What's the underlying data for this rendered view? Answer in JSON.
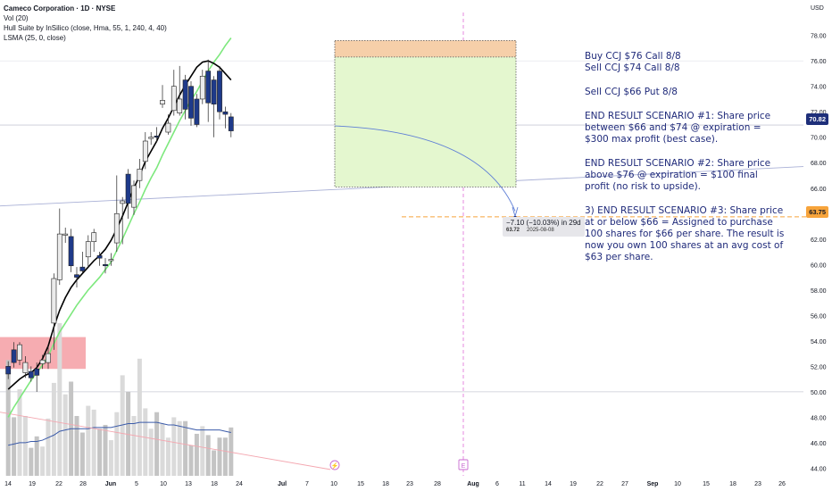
{
  "legend": {
    "title": "Cameco Corporation · 1D · NYSE",
    "volume": "Vol (20)",
    "hull": "Hull Suite by InSilico (close, Hma, 55, 1, 240, 4, 40)",
    "lsma": "LSMA (25, 0, close)"
  },
  "axis": {
    "unit": "USD",
    "y_ticks": [
      "78.00",
      "76.00",
      "74.00",
      "72.00",
      "70.00",
      "68.00",
      "66.00",
      "64.00",
      "62.00",
      "60.00",
      "58.00",
      "56.00",
      "54.00",
      "52.00",
      "50.00",
      "48.00",
      "46.00",
      "44.00"
    ],
    "x_ticks": [
      "14",
      "19",
      "22",
      "28",
      "Jun",
      "5",
      "10",
      "13",
      "18",
      "24",
      "Jul",
      "7",
      "10",
      "15",
      "18",
      "23",
      "28",
      "Aug",
      "6",
      "11",
      "14",
      "19",
      "22",
      "27",
      "Sep",
      "10",
      "15",
      "18",
      "23",
      "26"
    ]
  },
  "price_labels": {
    "current": "70.82",
    "target": "63.75"
  },
  "measure": {
    "change": "−7.10 (−10.03%) in 29d",
    "price": "63.72",
    "date": "2025-08-08"
  },
  "notes": [
    "Buy CCJ $76 Call 8/8",
    "Sell CCJ $74 Call 8/8",
    "Sell CCJ $66 Put 8/8",
    "END RESULT SCENARIO #1: Share price between $66 and $74 @ expiration = $300 max profit (best case).",
    "END RESULT SCENARIO #2: Share price above $76 @ expiration = $100 final profit (no risk to upside).",
    "3) END RESULT SCENARIO #3: Share price at or below $66 = Assigned to purchase 100 shares for $66 per share. The result is now you own 100 shares at an avg cost of $63 per share."
  ],
  "markers": {
    "lightning": "⚡",
    "earnings": "E"
  },
  "colors": {
    "up_candle": "#ebebeb",
    "down_candle": "#1e3a8a",
    "hull": "#000000",
    "lsma": "#7de87d",
    "volume_ma": "#3b5ba9",
    "zone_profit": "#e4f7cf",
    "zone_top": "#f6cfa9",
    "demand": "#f5a3a9",
    "note_text": "#1f2a7a",
    "target_line": "#f7a43b"
  },
  "chart_data": {
    "type": "candlestick",
    "dates": [
      "May 13",
      "May 14",
      "May 15",
      "May 16",
      "May 19",
      "May 20",
      "May 21",
      "May 22",
      "May 23",
      "May 27",
      "May 28",
      "May 29",
      "May 30",
      "Jun 2",
      "Jun 3",
      "Jun 4",
      "Jun 5",
      "Jun 6",
      "Jun 9",
      "Jun 10",
      "Jun 11",
      "Jun 12",
      "Jun 13",
      "Jun 16",
      "Jun 17",
      "Jun 18",
      "Jun 20",
      "Jun 23",
      "Jun 24",
      "Jun 25",
      "Jun 26",
      "Jun 27",
      "Jun 30",
      "Jul 1",
      "Jul 2",
      "Jul 3",
      "Jul 7",
      "Jul 8",
      "Jul 9",
      "Jul 10"
    ],
    "open": [
      52.0,
      53.3,
      52.5,
      51.5,
      51.6,
      51.8,
      52.2,
      52.3,
      55.4,
      58.8,
      62.3,
      62.2,
      59.2,
      59.8,
      60.6,
      61.8,
      60.7,
      60.0,
      60.3,
      61.7,
      64.8,
      67.1,
      64.5,
      66.6,
      68.1,
      69.9,
      70.1,
      72.6,
      70.4,
      72.1,
      71.9,
      74.5,
      74.0,
      73.0,
      73.0,
      75.2,
      74.5,
      75.2,
      72.0,
      71.6
    ],
    "close": [
      51.4,
      52.3,
      53.7,
      52.3,
      51.1,
      51.3,
      52.5,
      53.0,
      58.9,
      62.4,
      62.4,
      59.9,
      59.0,
      59.5,
      61.8,
      62.5,
      60.5,
      59.9,
      60.4,
      64.0,
      65.0,
      64.8,
      66.2,
      67.5,
      69.7,
      70.0,
      70.0,
      72.9,
      71.1,
      74.0,
      73.0,
      72.2,
      71.5,
      71.0,
      74.8,
      72.7,
      72.6,
      72.0,
      71.8,
      70.5
    ],
    "high": [
      52.4,
      53.9,
      53.9,
      52.8,
      52.0,
      52.3,
      52.9,
      53.6,
      59.3,
      64.4,
      62.9,
      62.8,
      59.8,
      61.0,
      62.3,
      62.8,
      61.0,
      60.5,
      60.9,
      67.0,
      65.3,
      67.5,
      66.6,
      68.3,
      70.4,
      70.4,
      70.8,
      74.1,
      71.8,
      75.3,
      75.6,
      74.9,
      74.4,
      73.4,
      75.3,
      76.1,
      74.8,
      75.6,
      72.4,
      71.9
    ],
    "low": [
      51.0,
      51.9,
      52.1,
      51.1,
      50.8,
      50.0,
      51.8,
      51.8,
      53.3,
      58.4,
      61.7,
      59.4,
      58.2,
      59.3,
      59.8,
      61.0,
      59.9,
      59.3,
      59.9,
      61.0,
      61.6,
      63.6,
      63.9,
      66.0,
      67.5,
      69.4,
      69.6,
      72.3,
      70.2,
      71.7,
      71.7,
      71.4,
      70.9,
      70.8,
      72.6,
      71.2,
      70.0,
      71.4,
      70.7,
      70.0
    ],
    "volume": [
      52.5,
      48.0,
      50.2,
      48.1,
      45.6,
      46.5,
      45.7,
      47.9,
      50.7,
      55.4,
      49.8,
      50.8,
      48.1,
      46.8,
      48.9,
      48.6,
      47.1,
      47.4,
      46.2,
      48.4,
      51.3,
      50.0,
      48.1,
      52.6,
      48.7,
      47.1,
      48.4,
      47.5,
      46.4,
      48.0,
      47.7,
      47.7,
      45.8,
      46.7,
      47.3,
      46.6,
      45.4,
      46.4,
      46.4,
      47.2
    ],
    "hull": [
      50.2,
      50.6,
      51.0,
      51.3,
      51.5,
      51.9,
      52.6,
      53.6,
      55.1,
      56.4,
      57.4,
      58.2,
      58.8,
      59.3,
      59.8,
      60.3,
      60.7,
      61.2,
      61.9,
      62.8,
      63.8,
      64.9,
      66.0,
      67.0,
      68.1,
      68.9,
      69.7,
      70.7,
      71.5,
      72.4,
      73.3,
      74.1,
      74.8,
      75.5,
      75.9,
      76.0,
      75.8,
      75.5,
      75.0,
      74.5
    ],
    "lsma": [
      48.0,
      48.8,
      49.5,
      50.2,
      50.9,
      51.5,
      52.1,
      52.8,
      53.8,
      54.7,
      55.4,
      56.1,
      56.8,
      57.4,
      58.0,
      58.5,
      59.0,
      59.6,
      60.2,
      61.1,
      62.0,
      63.0,
      64.0,
      64.9,
      65.9,
      66.8,
      67.6,
      68.6,
      69.5,
      70.4,
      71.3,
      72.1,
      72.9,
      73.6,
      74.4,
      75.2,
      75.9,
      76.5,
      77.2,
      77.8
    ],
    "volume_ma": [
      45.8,
      45.9,
      46.0,
      46.0,
      46.1,
      46.1,
      46.2,
      46.4,
      46.6,
      46.9,
      47.0,
      47.1,
      47.1,
      47.1,
      47.1,
      47.2,
      47.2,
      47.2,
      47.2,
      47.3,
      47.4,
      47.5,
      47.5,
      47.6,
      47.6,
      47.6,
      47.6,
      47.5,
      47.4,
      47.4,
      47.3,
      47.2,
      47.1,
      47.0,
      47.0,
      47.0,
      47.0,
      47.0,
      46.9,
      46.8
    ],
    "trade_zone": {
      "price_top": 77.6,
      "price_mid": 76.3,
      "price_bottom": 66.1
    },
    "demand_zone": {
      "price_top": 54.3,
      "price_bottom": 51.8
    },
    "current_price": 70.82,
    "target_price": 63.75,
    "ylim": [
      43.4,
      79.8
    ]
  }
}
